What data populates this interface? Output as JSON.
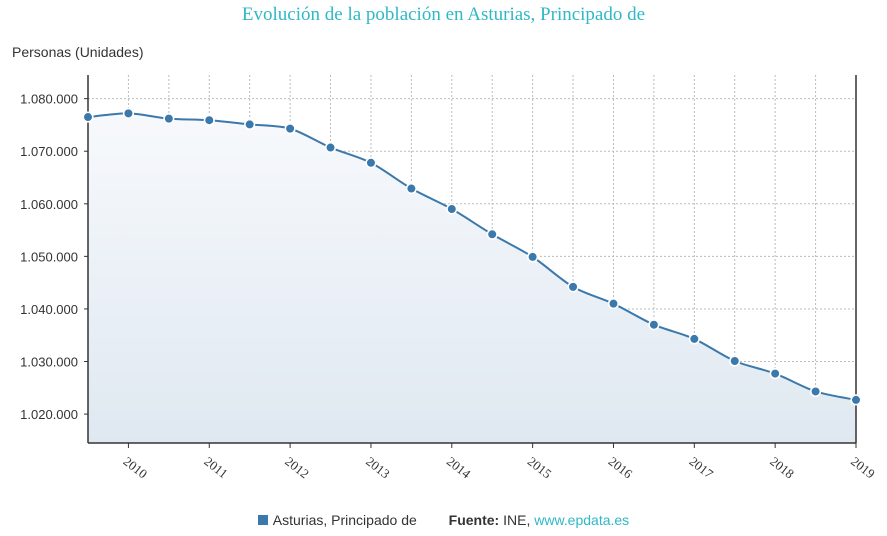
{
  "page": {
    "title": "Evolución de la población en Asturias, Principado de"
  },
  "legend": {
    "series_name": "Asturias, Principado de",
    "source_label": "Fuente:",
    "source_name": "INE,",
    "source_link": "www.epdata.es"
  },
  "colors": {
    "title": "#2fb8c6",
    "series": "#3b78ab",
    "area_top": "#f7f9fc",
    "area_bottom": "#dfe8f1",
    "grid": "#bbbbbb",
    "link": "#2fb8c6"
  },
  "chart_data": {
    "type": "area",
    "title": "Evolución de la población en Asturias, Principado de",
    "xlabel": "",
    "ylabel": "Personas (Unidades)",
    "x_tick_labels": [
      "2010",
      "2011",
      "2012",
      "2013",
      "2014",
      "2015",
      "2016",
      "2017",
      "2018",
      "2019"
    ],
    "y_tick_labels": [
      "1.020.000",
      "1.030.000",
      "1.040.000",
      "1.050.000",
      "1.060.000",
      "1.070.000",
      "1.080.000"
    ],
    "y_ticks": [
      1020000,
      1030000,
      1040000,
      1050000,
      1060000,
      1070000,
      1080000
    ],
    "xlim": [
      2009.5,
      2019
    ],
    "ylim": [
      1014500,
      1084500
    ],
    "grid": true,
    "legend_position": "bottom",
    "series": [
      {
        "name": "Asturias, Principado de",
        "x": [
          2009.5,
          2010,
          2010.5,
          2011,
          2011.5,
          2012,
          2012.5,
          2013,
          2013.5,
          2014,
          2014.5,
          2015,
          2015.5,
          2016,
          2016.5,
          2017,
          2017.5,
          2018,
          2018.5,
          2019
        ],
        "values": [
          1076500,
          1077200,
          1076200,
          1075900,
          1075100,
          1074300,
          1070700,
          1067800,
          1062900,
          1059000,
          1054200,
          1049900,
          1044200,
          1041000,
          1037000,
          1034300,
          1030100,
          1027700,
          1024300,
          1022700
        ]
      }
    ]
  }
}
